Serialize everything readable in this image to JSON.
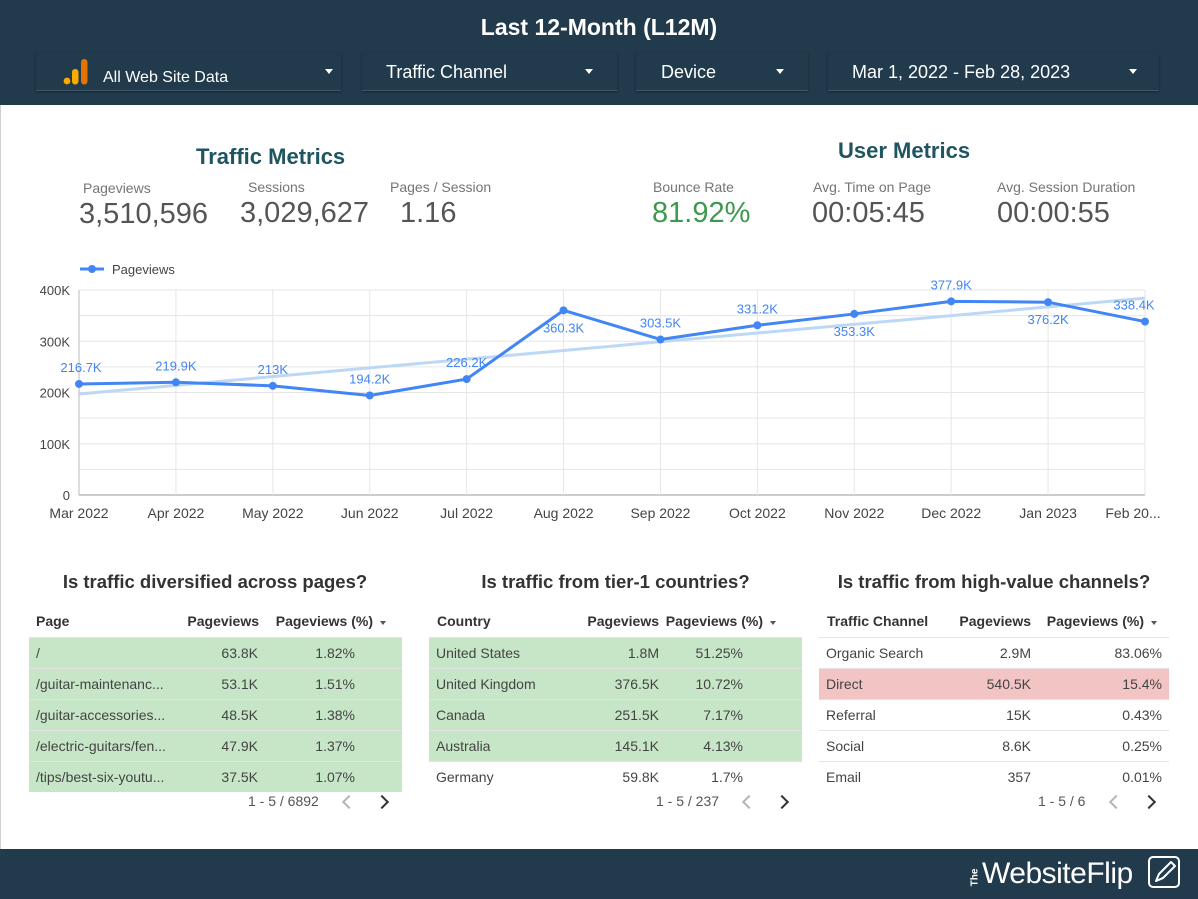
{
  "header": {
    "title": "Last 12-Month (L12M)",
    "controls": {
      "data_source": "All Web Site Data",
      "channel": "Traffic Channel",
      "device": "Device",
      "date_range": "Mar 1, 2022 - Feb 28, 2023"
    }
  },
  "traffic_metrics": {
    "title": "Traffic Metrics",
    "pageviews": {
      "label": "Pageviews",
      "value": "3,510,596"
    },
    "sessions": {
      "label": "Sessions",
      "value": "3,029,627"
    },
    "pages_per_session": {
      "label": "Pages / Session",
      "value": "1.16"
    }
  },
  "user_metrics": {
    "title": "User Metrics",
    "bounce_rate": {
      "label": "Bounce Rate",
      "value": "81.92%"
    },
    "avg_time_on_page": {
      "label": "Avg. Time on Page",
      "value": "00:05:45"
    },
    "avg_session_duration": {
      "label": "Avg. Session Duration",
      "value": "00:00:55"
    }
  },
  "colors": {
    "header_bg": "#213a4c",
    "series": "#4285f4",
    "trend": "#bcd8f6",
    "bounce_rate": "#3d9a4d",
    "highlight_good": "#c6e6c7",
    "highlight_bad": "#f2c4c4",
    "section_title": "#1f5561"
  },
  "chart_data": {
    "type": "line",
    "legend": "top-left",
    "grid": true,
    "ylim": [
      0,
      400000
    ],
    "y_ticks": [
      "0",
      "100K",
      "200K",
      "300K",
      "400K"
    ],
    "categories": [
      "Mar 2022",
      "Apr 2022",
      "May 2022",
      "Jun 2022",
      "Jul 2022",
      "Aug 2022",
      "Sep 2022",
      "Oct 2022",
      "Nov 2022",
      "Dec 2022",
      "Jan 2023",
      "Feb 20..."
    ],
    "series": [
      {
        "name": "Pageviews",
        "values": [
          216700,
          219900,
          213000,
          194200,
          226200,
          360300,
          303500,
          331200,
          353300,
          377900,
          376200,
          338400
        ],
        "labels": [
          "216.7K",
          "219.9K",
          "213K",
          "194.2K",
          "226.2K",
          "360.3K",
          "303.5K",
          "331.2K",
          "353.3K",
          "377.9K",
          "376.2K",
          "338.4K"
        ]
      }
    ],
    "trendline": {
      "start": 197000,
      "end": 384000
    }
  },
  "tables": [
    {
      "question": "Is traffic diversified across pages?",
      "columns": [
        "Page",
        "Pageviews",
        "Pageviews (%)"
      ],
      "rows": [
        [
          "/",
          "63.8K",
          "1.82%"
        ],
        [
          "/guitar-maintenanc...",
          "53.1K",
          "1.51%"
        ],
        [
          "/guitar-accessories...",
          "48.5K",
          "1.38%"
        ],
        [
          "/electric-guitars/fen...",
          "47.9K",
          "1.37%"
        ],
        [
          "/tips/best-six-youtu...",
          "37.5K",
          "1.07%"
        ]
      ],
      "pager": "1 - 5 / 6892"
    },
    {
      "question": "Is traffic from tier-1 countries?",
      "columns": [
        "Country",
        "Pageviews",
        "Pageviews (%)"
      ],
      "rows": [
        [
          "United States",
          "1.8M",
          "51.25%"
        ],
        [
          "United Kingdom",
          "376.5K",
          "10.72%"
        ],
        [
          "Canada",
          "251.5K",
          "7.17%"
        ],
        [
          "Australia",
          "145.1K",
          "4.13%"
        ],
        [
          "Germany",
          "59.8K",
          "1.7%"
        ]
      ],
      "pager": "1 - 5 / 237"
    },
    {
      "question": "Is traffic from high-value channels?",
      "columns": [
        "Traffic Channel",
        "Pageviews",
        "Pageviews (%)"
      ],
      "rows": [
        [
          "Organic Search",
          "2.9M",
          "83.06%"
        ],
        [
          "Direct",
          "540.5K",
          "15.4%"
        ],
        [
          "Referral",
          "15K",
          "0.43%"
        ],
        [
          "Social",
          "8.6K",
          "0.25%"
        ],
        [
          "Email",
          "357",
          "0.01%"
        ]
      ],
      "pager": "1 - 5 / 6"
    }
  ],
  "footer": {
    "brand_the": "The",
    "brand": "WebsiteFlip",
    "brand_icon": "pen-edit-icon"
  }
}
